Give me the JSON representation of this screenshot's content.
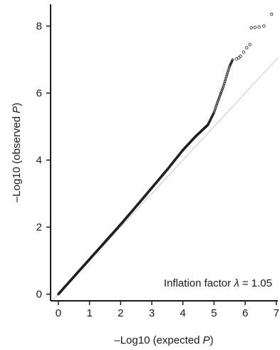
{
  "chart_data": {
    "type": "scatter",
    "title": "",
    "xlabel": "–Log10 (expected P)",
    "ylabel": "–Log10 (observed P)",
    "xlabel_prefix": "–Log10 (expected ",
    "xlabel_italic": "P",
    "xlabel_suffix": ")",
    "ylabel_prefix": "–Log10 (observed ",
    "ylabel_italic": "P",
    "ylabel_suffix": ")",
    "xlim": [
      -0.25,
      7.05
    ],
    "ylim": [
      -0.2,
      8.65
    ],
    "x_ticks": [
      "0",
      "1",
      "2",
      "3",
      "4",
      "5",
      "6",
      "7"
    ],
    "y_ticks": [
      "0",
      "2",
      "4",
      "6",
      "8"
    ],
    "grid": false,
    "reference_line": "y = x",
    "annotation": "Inflation factor λ = 1.05",
    "annotation_prefix": "Inflation factor ",
    "annotation_symbol": "λ",
    "annotation_suffix": " = 1.05",
    "curve_points": [
      [
        0.0,
        0.0
      ],
      [
        0.5,
        0.52
      ],
      [
        1.0,
        1.04
      ],
      [
        1.5,
        1.56
      ],
      [
        2.0,
        2.08
      ],
      [
        2.5,
        2.62
      ],
      [
        3.0,
        3.17
      ],
      [
        3.5,
        3.72
      ],
      [
        4.0,
        4.3
      ],
      [
        4.4,
        4.7
      ],
      [
        4.8,
        5.05
      ],
      [
        5.0,
        5.42
      ],
      [
        5.1,
        5.7
      ],
      [
        5.2,
        5.95
      ],
      [
        5.3,
        6.2
      ],
      [
        5.4,
        6.5
      ],
      [
        5.5,
        6.8
      ],
      [
        5.6,
        7.0
      ]
    ],
    "outlier_points": [
      [
        5.72,
        7.02
      ],
      [
        5.8,
        7.05
      ],
      [
        5.85,
        7.1
      ],
      [
        5.95,
        7.22
      ],
      [
        6.05,
        7.35
      ],
      [
        6.15,
        7.45
      ],
      [
        6.2,
        7.95
      ],
      [
        6.32,
        7.96
      ],
      [
        6.45,
        7.97
      ],
      [
        6.6,
        8.0
      ],
      [
        6.85,
        8.35
      ]
    ],
    "colors": {
      "points": "#1a1a1a",
      "reference_line": "#c8c8c8",
      "axes": "#1a1a1a"
    }
  }
}
